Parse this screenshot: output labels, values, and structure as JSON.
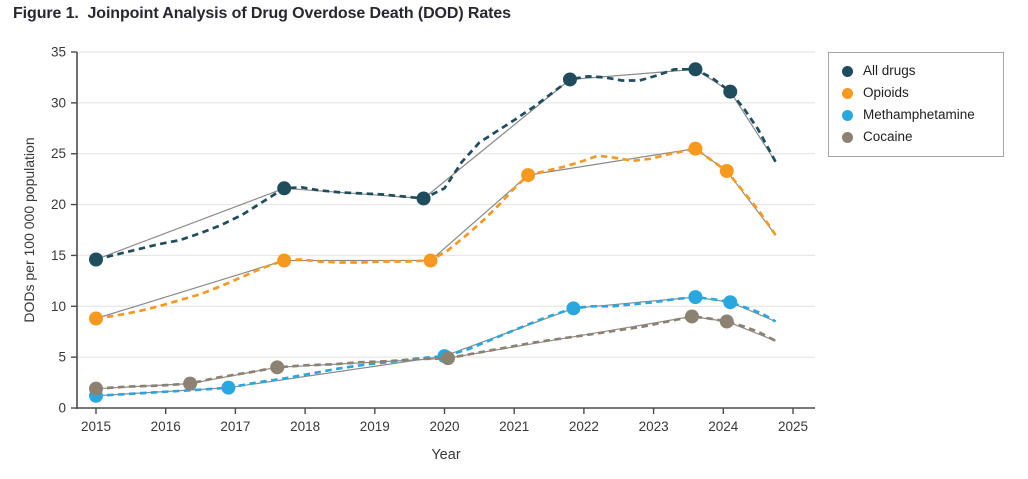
{
  "figure": {
    "title": "Figure 1.  Joinpoint Analysis of Drug Overdose Death (DOD) Rates"
  },
  "chart_data": {
    "type": "line",
    "title": "Figure 1.  Joinpoint Analysis of Drug Overdose Death (DOD) Rates",
    "xlabel": "Year",
    "ylabel": "DODs per 100 000 population",
    "xlim": [
      2015,
      2025
    ],
    "ylim": [
      0,
      35
    ],
    "xticks": [
      2015,
      2016,
      2017,
      2018,
      2019,
      2020,
      2021,
      2022,
      2023,
      2024,
      2025
    ],
    "yticks": [
      0,
      5,
      10,
      15,
      20,
      25,
      30,
      35
    ],
    "grid": "horizontal-light",
    "legend_position": "outside-right",
    "line_styles": {
      "observed": "dashed",
      "model_fit": "thin-solid",
      "joinpoints": "filled-dots"
    },
    "series": [
      {
        "name": "All drugs",
        "color": "#1f4d5e",
        "joinpoints": [
          [
            2015,
            14.6
          ],
          [
            2017.7,
            21.6
          ],
          [
            2019.7,
            20.6
          ],
          [
            2021.8,
            32.3
          ],
          [
            2023.6,
            33.3
          ],
          [
            2024.1,
            31.1
          ]
        ],
        "trend": [
          [
            2015,
            14.6
          ],
          [
            2017.7,
            21.6
          ],
          [
            2019.7,
            20.6
          ],
          [
            2021.8,
            32.3
          ],
          [
            2023.6,
            33.3
          ],
          [
            2024.1,
            31.1
          ],
          [
            2024.75,
            24.2
          ]
        ],
        "observed": [
          [
            2015,
            14.6
          ],
          [
            2015.3,
            15.1
          ],
          [
            2015.6,
            15.6
          ],
          [
            2015.9,
            16.1
          ],
          [
            2016.2,
            16.5
          ],
          [
            2016.5,
            17.2
          ],
          [
            2016.8,
            18.0
          ],
          [
            2017.1,
            19.0
          ],
          [
            2017.4,
            20.3
          ],
          [
            2017.7,
            21.6
          ],
          [
            2017.95,
            21.7
          ],
          [
            2018.2,
            21.4
          ],
          [
            2018.5,
            21.2
          ],
          [
            2018.8,
            21.1
          ],
          [
            2019.1,
            21.0
          ],
          [
            2019.4,
            20.8
          ],
          [
            2019.7,
            20.6
          ],
          [
            2020.0,
            21.6
          ],
          [
            2020.25,
            24.2
          ],
          [
            2020.5,
            26.1
          ],
          [
            2020.75,
            27.2
          ],
          [
            2021.0,
            28.3
          ],
          [
            2021.3,
            29.7
          ],
          [
            2021.55,
            31.0
          ],
          [
            2021.8,
            32.3
          ],
          [
            2022.05,
            32.6
          ],
          [
            2022.3,
            32.5
          ],
          [
            2022.55,
            32.2
          ],
          [
            2022.8,
            32.2
          ],
          [
            2023.05,
            32.7
          ],
          [
            2023.3,
            33.3
          ],
          [
            2023.6,
            33.3
          ],
          [
            2023.85,
            32.4
          ],
          [
            2024.1,
            31.1
          ],
          [
            2024.3,
            29.4
          ],
          [
            2024.5,
            27.4
          ],
          [
            2024.75,
            24.2
          ]
        ]
      },
      {
        "name": "Opioids",
        "color": "#f6991e",
        "joinpoints": [
          [
            2015,
            8.8
          ],
          [
            2017.7,
            14.5
          ],
          [
            2019.8,
            14.5
          ],
          [
            2021.2,
            22.9
          ],
          [
            2023.6,
            25.5
          ],
          [
            2024.05,
            23.3
          ]
        ],
        "trend": [
          [
            2015,
            8.8
          ],
          [
            2017.7,
            14.5
          ],
          [
            2019.8,
            14.5
          ],
          [
            2021.2,
            22.9
          ],
          [
            2023.6,
            25.5
          ],
          [
            2024.05,
            23.3
          ],
          [
            2024.75,
            17.0
          ]
        ],
        "observed": [
          [
            2015,
            8.8
          ],
          [
            2015.3,
            9.1
          ],
          [
            2015.6,
            9.5
          ],
          [
            2015.9,
            10.0
          ],
          [
            2016.2,
            10.6
          ],
          [
            2016.5,
            11.2
          ],
          [
            2016.8,
            12.0
          ],
          [
            2017.1,
            12.9
          ],
          [
            2017.4,
            13.8
          ],
          [
            2017.7,
            14.5
          ],
          [
            2017.95,
            14.6
          ],
          [
            2018.2,
            14.4
          ],
          [
            2018.5,
            14.3
          ],
          [
            2018.8,
            14.3
          ],
          [
            2019.1,
            14.4
          ],
          [
            2019.45,
            14.4
          ],
          [
            2019.8,
            14.5
          ],
          [
            2020.05,
            15.5
          ],
          [
            2020.3,
            16.9
          ],
          [
            2020.55,
            18.4
          ],
          [
            2020.8,
            20.1
          ],
          [
            2021.0,
            21.6
          ],
          [
            2021.2,
            22.9
          ],
          [
            2021.45,
            23.3
          ],
          [
            2021.7,
            23.7
          ],
          [
            2021.95,
            24.2
          ],
          [
            2022.2,
            24.8
          ],
          [
            2022.45,
            24.6
          ],
          [
            2022.7,
            24.3
          ],
          [
            2022.95,
            24.5
          ],
          [
            2023.25,
            25.0
          ],
          [
            2023.6,
            25.5
          ],
          [
            2023.8,
            24.5
          ],
          [
            2024.05,
            23.3
          ],
          [
            2024.25,
            21.6
          ],
          [
            2024.5,
            19.5
          ],
          [
            2024.75,
            17.0
          ]
        ]
      },
      {
        "name": "Methamphetamine",
        "color": "#29a8e0",
        "joinpoints": [
          [
            2015,
            1.2
          ],
          [
            2016.9,
            2.0
          ],
          [
            2020.0,
            5.1
          ],
          [
            2021.85,
            9.8
          ],
          [
            2023.6,
            10.9
          ],
          [
            2024.1,
            10.4
          ]
        ],
        "trend": [
          [
            2015,
            1.2
          ],
          [
            2016.9,
            2.0
          ],
          [
            2020.0,
            5.1
          ],
          [
            2021.85,
            9.8
          ],
          [
            2023.6,
            10.9
          ],
          [
            2024.1,
            10.4
          ],
          [
            2024.75,
            8.5
          ]
        ],
        "observed": [
          [
            2015,
            1.2
          ],
          [
            2015.5,
            1.4
          ],
          [
            2016.0,
            1.6
          ],
          [
            2016.5,
            1.8
          ],
          [
            2016.9,
            2.0
          ],
          [
            2017.3,
            2.5
          ],
          [
            2017.7,
            2.9
          ],
          [
            2018.1,
            3.4
          ],
          [
            2018.5,
            3.9
          ],
          [
            2018.9,
            4.3
          ],
          [
            2019.3,
            4.6
          ],
          [
            2019.65,
            4.9
          ],
          [
            2020.0,
            5.1
          ],
          [
            2020.35,
            5.8
          ],
          [
            2020.7,
            6.8
          ],
          [
            2021.05,
            7.8
          ],
          [
            2021.45,
            8.9
          ],
          [
            2021.85,
            9.8
          ],
          [
            2022.1,
            10.0
          ],
          [
            2022.4,
            10.0
          ],
          [
            2022.7,
            10.2
          ],
          [
            2023.0,
            10.4
          ],
          [
            2023.3,
            10.7
          ],
          [
            2023.6,
            10.9
          ],
          [
            2023.85,
            10.7
          ],
          [
            2024.1,
            10.4
          ],
          [
            2024.35,
            9.8
          ],
          [
            2024.55,
            9.3
          ],
          [
            2024.75,
            8.5
          ]
        ]
      },
      {
        "name": "Cocaine",
        "color": "#8c8272",
        "joinpoints": [
          [
            2015,
            1.9
          ],
          [
            2016.35,
            2.4
          ],
          [
            2017.6,
            4.0
          ],
          [
            2020.05,
            4.9
          ],
          [
            2023.55,
            9.0
          ],
          [
            2024.05,
            8.5
          ]
        ],
        "trend": [
          [
            2015,
            1.9
          ],
          [
            2016.35,
            2.4
          ],
          [
            2017.6,
            4.0
          ],
          [
            2020.05,
            4.9
          ],
          [
            2023.55,
            9.0
          ],
          [
            2024.05,
            8.5
          ],
          [
            2024.75,
            6.6
          ]
        ],
        "observed": [
          [
            2015,
            1.9
          ],
          [
            2015.45,
            2.1
          ],
          [
            2015.9,
            2.2
          ],
          [
            2016.35,
            2.4
          ],
          [
            2016.75,
            3.0
          ],
          [
            2017.2,
            3.5
          ],
          [
            2017.6,
            4.0
          ],
          [
            2018.0,
            4.2
          ],
          [
            2018.4,
            4.3
          ],
          [
            2018.8,
            4.5
          ],
          [
            2019.2,
            4.6
          ],
          [
            2019.6,
            4.8
          ],
          [
            2020.05,
            4.9
          ],
          [
            2020.45,
            5.4
          ],
          [
            2020.85,
            5.9
          ],
          [
            2021.25,
            6.4
          ],
          [
            2021.65,
            6.8
          ],
          [
            2022.05,
            7.2
          ],
          [
            2022.45,
            7.6
          ],
          [
            2022.85,
            8.0
          ],
          [
            2023.2,
            8.5
          ],
          [
            2023.55,
            9.0
          ],
          [
            2023.8,
            8.8
          ],
          [
            2024.05,
            8.5
          ],
          [
            2024.3,
            8.0
          ],
          [
            2024.5,
            7.5
          ],
          [
            2024.75,
            6.6
          ]
        ]
      }
    ]
  },
  "style_colors": {
    "axis": "#4b4b4b",
    "grid": "#e2e2e2",
    "model_fit_line": "#8a8a8a",
    "tick_text": "#383838",
    "title_text": "#27272f"
  }
}
